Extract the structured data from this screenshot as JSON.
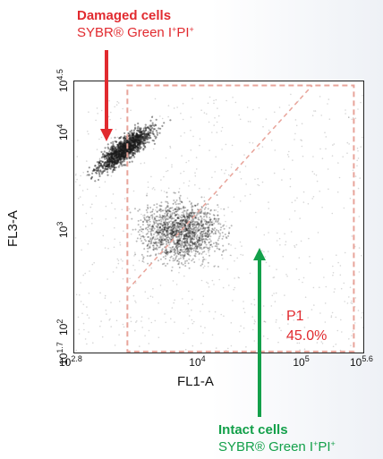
{
  "annotations": {
    "damaged": {
      "title": "Damaged cells",
      "stain": "SYBR® Green I",
      "stain_sup": "+",
      "pi": "PI",
      "pi_sup": "+"
    },
    "intact": {
      "title": "Intact cells",
      "stain": "SYBR® Green I",
      "stain_sup": "+",
      "pi": "PI",
      "pi_sup": "+"
    }
  },
  "colors": {
    "damaged_arrow": "#e12a2f",
    "intact_arrow": "#13a04a",
    "gate": "#e8a49a",
    "points": "#1a1a1a"
  },
  "chart_data": {
    "type": "scatter",
    "title": "",
    "xlabel": "FL1-A",
    "ylabel": "FL3-A",
    "x_scale": "log",
    "y_scale": "log",
    "xlim_log10": [
      2.8,
      5.6
    ],
    "ylim_log10": [
      1.7,
      4.5
    ],
    "x_ticks": [
      {
        "base": "10",
        "exp": "2.8",
        "value_log10": 2.8
      },
      {
        "base": "10",
        "exp": "4",
        "value_log10": 4
      },
      {
        "base": "10",
        "exp": "5",
        "value_log10": 5
      },
      {
        "base": "10",
        "exp": "5.6",
        "value_log10": 5.6
      }
    ],
    "y_ticks": [
      {
        "base": "10",
        "exp": "1.7",
        "value_log10": 1.7
      },
      {
        "base": "10",
        "exp": "2",
        "value_log10": 2
      },
      {
        "base": "10",
        "exp": "3",
        "value_log10": 3
      },
      {
        "base": "10",
        "exp": "4",
        "value_log10": 4
      },
      {
        "base": "10",
        "exp": "4.5",
        "value_log10": 4.5
      }
    ],
    "populations": [
      {
        "name": "Damaged cells",
        "center_log10": [
          3.3,
          3.8
        ],
        "spread_log10": [
          0.28,
          0.08
        ],
        "direction": [
          0.75,
          0.66
        ]
      },
      {
        "name": "Intact cells",
        "center_log10": [
          3.85,
          2.95
        ],
        "spread_log10": [
          0.3,
          0.25
        ],
        "direction": [
          1,
          0
        ]
      }
    ],
    "gate": {
      "name": "P1",
      "percent": "45.0%",
      "x_log10": [
        3.32,
        5.5
      ],
      "y_log10": [
        1.72,
        4.45
      ],
      "diagonal": [
        [
          3.32,
          2.35
        ],
        [
          5.1,
          4.45
        ]
      ]
    }
  }
}
